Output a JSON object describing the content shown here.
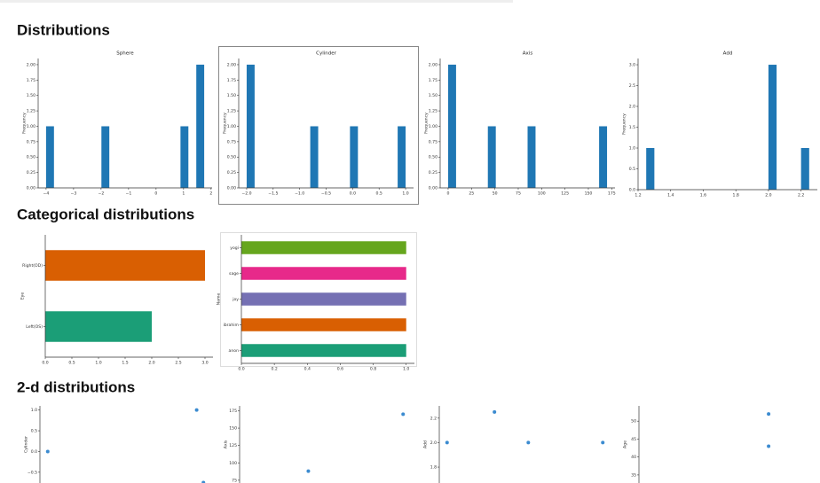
{
  "headings": [
    "Distributions",
    "Categorical distributions",
    "2-d distributions"
  ],
  "chart_data": [
    {
      "type": "histogram",
      "title": "Sphere",
      "ylabel": "Frequency",
      "color": "#1f77b4",
      "bins": [
        -4,
        -3.7125,
        -3.425,
        -3.1375,
        -2.85,
        -2.5625,
        -2.275,
        -1.9875,
        -1.7,
        -1.4125,
        -1.125,
        -0.8375,
        -0.55,
        -0.2625,
        0.025,
        0.3125,
        0.6,
        0.8875,
        1.175,
        1.4625,
        1.75
      ],
      "counts": [
        1,
        0,
        0,
        0,
        0,
        0,
        0,
        1,
        0,
        0,
        0,
        0,
        0,
        0,
        0,
        0,
        0,
        1,
        0,
        2
      ],
      "xlim": [
        -4.2875,
        2.0375
      ],
      "ylim": [
        0,
        2.1
      ],
      "xticks": [
        {
          "value": -4,
          "label": "−4"
        },
        {
          "value": -3,
          "label": "−3"
        },
        {
          "value": -2,
          "label": "−2"
        },
        {
          "value": -1,
          "label": "−1"
        },
        0,
        1,
        2
      ],
      "yticks": [
        {
          "value": 0,
          "label": "0.00"
        },
        {
          "value": 0.25,
          "label": "0.25"
        },
        {
          "value": 0.5,
          "label": "0.50"
        },
        {
          "value": 0.75,
          "label": "0.75"
        },
        {
          "value": 1,
          "label": "1.00"
        },
        {
          "value": 1.25,
          "label": "1.25"
        },
        {
          "value": 1.5,
          "label": "1.50"
        },
        {
          "value": 1.75,
          "label": "1.75"
        },
        {
          "value": 2,
          "label": "2.00"
        }
      ]
    },
    {
      "type": "histogram",
      "title": "Cylinder",
      "ylabel": "Frequency",
      "color": "#1f77b4",
      "bins": [
        -2,
        -1.85,
        -1.7,
        -1.55,
        -1.4,
        -1.25,
        -1.1,
        -0.95,
        -0.8,
        -0.65,
        -0.5,
        -0.35,
        -0.2,
        -0.05,
        0.1,
        0.25,
        0.4,
        0.55,
        0.7,
        0.85,
        1
      ],
      "counts": [
        2,
        0,
        0,
        0,
        0,
        0,
        0,
        0,
        1,
        0,
        0,
        0,
        0,
        1,
        0,
        0,
        0,
        0,
        0,
        1
      ],
      "xlim": [
        -2.15,
        1.15
      ],
      "ylim": [
        0,
        2.1
      ],
      "xticks": [
        {
          "value": -2,
          "label": "−2.0"
        },
        {
          "value": -1.5,
          "label": "−1.5"
        },
        {
          "value": -1,
          "label": "−1.0"
        },
        {
          "value": -0.5,
          "label": "−0.5"
        },
        {
          "value": 0,
          "label": "0.0"
        },
        0.5,
        {
          "value": 1,
          "label": "1.0"
        }
      ],
      "yticks": [
        {
          "value": 0,
          "label": "0.00"
        },
        {
          "value": 0.25,
          "label": "0.25"
        },
        {
          "value": 0.5,
          "label": "0.50"
        },
        {
          "value": 0.75,
          "label": "0.75"
        },
        {
          "value": 1,
          "label": "1.00"
        },
        {
          "value": 1.25,
          "label": "1.25"
        },
        {
          "value": 1.5,
          "label": "1.50"
        },
        {
          "value": 1.75,
          "label": "1.75"
        },
        {
          "value": 2,
          "label": "2.00"
        }
      ]
    },
    {
      "type": "histogram",
      "title": "Axis",
      "ylabel": "Frequency",
      "color": "#1f77b4",
      "bins": [
        0,
        8.5,
        17,
        25.5,
        34,
        42.5,
        51,
        59.5,
        68,
        76.5,
        85,
        93.5,
        102,
        110.5,
        119,
        127.5,
        136,
        144.5,
        153,
        161.5,
        170
      ],
      "counts": [
        2,
        0,
        0,
        0,
        0,
        1,
        0,
        0,
        0,
        0,
        1,
        0,
        0,
        0,
        0,
        0,
        0,
        0,
        0,
        1
      ],
      "xlim": [
        -8.5,
        178.5
      ],
      "ylim": [
        0,
        2.1
      ],
      "xticks": [
        0,
        25,
        50,
        75,
        100,
        125,
        150,
        175
      ],
      "yticks": [
        {
          "value": 0,
          "label": "0.00"
        },
        {
          "value": 0.25,
          "label": "0.25"
        },
        {
          "value": 0.5,
          "label": "0.50"
        },
        {
          "value": 0.75,
          "label": "0.75"
        },
        {
          "value": 1,
          "label": "1.00"
        },
        {
          "value": 1.25,
          "label": "1.25"
        },
        {
          "value": 1.5,
          "label": "1.50"
        },
        {
          "value": 1.75,
          "label": "1.75"
        },
        {
          "value": 2,
          "label": "2.00"
        }
      ]
    },
    {
      "type": "histogram",
      "title": "Add",
      "ylabel": "Frequency",
      "color": "#1f77b4",
      "bins": [
        1.25,
        1.3,
        1.35,
        1.4,
        1.45,
        1.5,
        1.55,
        1.6,
        1.65,
        1.7,
        1.75,
        1.8,
        1.85,
        1.9,
        1.95,
        2,
        2.05,
        2.1,
        2.15,
        2.2,
        2.25
      ],
      "counts": [
        1,
        0,
        0,
        0,
        0,
        0,
        0,
        0,
        0,
        0,
        0,
        0,
        0,
        0,
        0,
        3,
        0,
        0,
        0,
        1
      ],
      "xlim": [
        1.2,
        2.3
      ],
      "ylim": [
        0,
        3.15
      ],
      "xticks": [
        1.2,
        1.4,
        1.6,
        1.8,
        {
          "value": 2,
          "label": "2.0"
        },
        2.2
      ],
      "yticks": [
        {
          "value": 0,
          "label": "0.0"
        },
        0.5,
        {
          "value": 1,
          "label": "1.0"
        },
        1.5,
        {
          "value": 2,
          "label": "2.0"
        },
        2.5,
        {
          "value": 3,
          "label": "3.0"
        }
      ]
    },
    {
      "type": "barh",
      "ylabel": "Eye",
      "categories": [
        "Left(OS)",
        "Right(OD)"
      ],
      "values": [
        2,
        3
      ],
      "colors": [
        "#1b9e77",
        "#d95f02"
      ],
      "xlim": [
        0,
        3.15
      ],
      "xticks": [
        {
          "value": 0,
          "label": "0.0"
        },
        0.5,
        {
          "value": 1,
          "label": "1.0"
        },
        1.5,
        {
          "value": 2,
          "label": "2.0"
        },
        2.5,
        {
          "value": 3,
          "label": "3.0"
        }
      ]
    },
    {
      "type": "barh",
      "ylabel": "Name",
      "categories": [
        "anon",
        "ibrahim",
        "joy",
        "sage",
        "yogi"
      ],
      "values": [
        1,
        1,
        1,
        1,
        1
      ],
      "colors": [
        "#1b9e77",
        "#d95f02",
        "#7570b3",
        "#e7298a",
        "#66a61e"
      ],
      "xlim": [
        0,
        1.05
      ],
      "xticks": [
        {
          "value": 0,
          "label": "0.0"
        },
        0.2,
        0.4,
        0.6,
        0.8,
        {
          "value": 1,
          "label": "1.0"
        }
      ]
    },
    {
      "type": "scatter",
      "ylabel": "Cylinder",
      "color": "#3b8bd0",
      "x": [
        -4,
        1.5,
        1.75
      ],
      "y": [
        0,
        1,
        -0.75
      ],
      "xlim": [
        -4.2875,
        2.0375
      ],
      "ylim": [
        -0.76,
        1.1
      ],
      "yticks": [
        {
          "value": 1,
          "label": "1.0"
        },
        0.5,
        {
          "value": 0,
          "label": "0.0"
        },
        {
          "value": -0.5,
          "label": "−0.5"
        }
      ]
    },
    {
      "type": "scatter",
      "ylabel": "Axis",
      "color": "#3b8bd0",
      "x": [
        -1.75,
        1.75
      ],
      "y": [
        88,
        170
      ],
      "xlim": [
        -4.2875,
        2.0375
      ],
      "ylim": [
        71,
        182
      ],
      "yticks": [
        75,
        100,
        125,
        150,
        175
      ]
    },
    {
      "type": "scatter",
      "ylabel": "Add",
      "color": "#3b8bd0",
      "x": [
        -4,
        -2.25,
        -1,
        1.75
      ],
      "y": [
        2,
        2.25,
        2,
        2
      ],
      "xlim": [
        -4.2875,
        2.0375
      ],
      "ylim": [
        1.67,
        2.3
      ],
      "yticks": [
        1.8,
        {
          "value": 2,
          "label": "2.0"
        },
        2.2
      ]
    },
    {
      "type": "scatter",
      "ylabel": "Age",
      "color": "#3b8bd0",
      "x": [
        0.5,
        0.5
      ],
      "y": [
        52,
        43
      ],
      "xlim": [
        -4.2875,
        2.0375
      ],
      "ylim": [
        32.75,
        54.25
      ],
      "yticks": [
        35,
        40,
        45,
        50
      ]
    }
  ]
}
